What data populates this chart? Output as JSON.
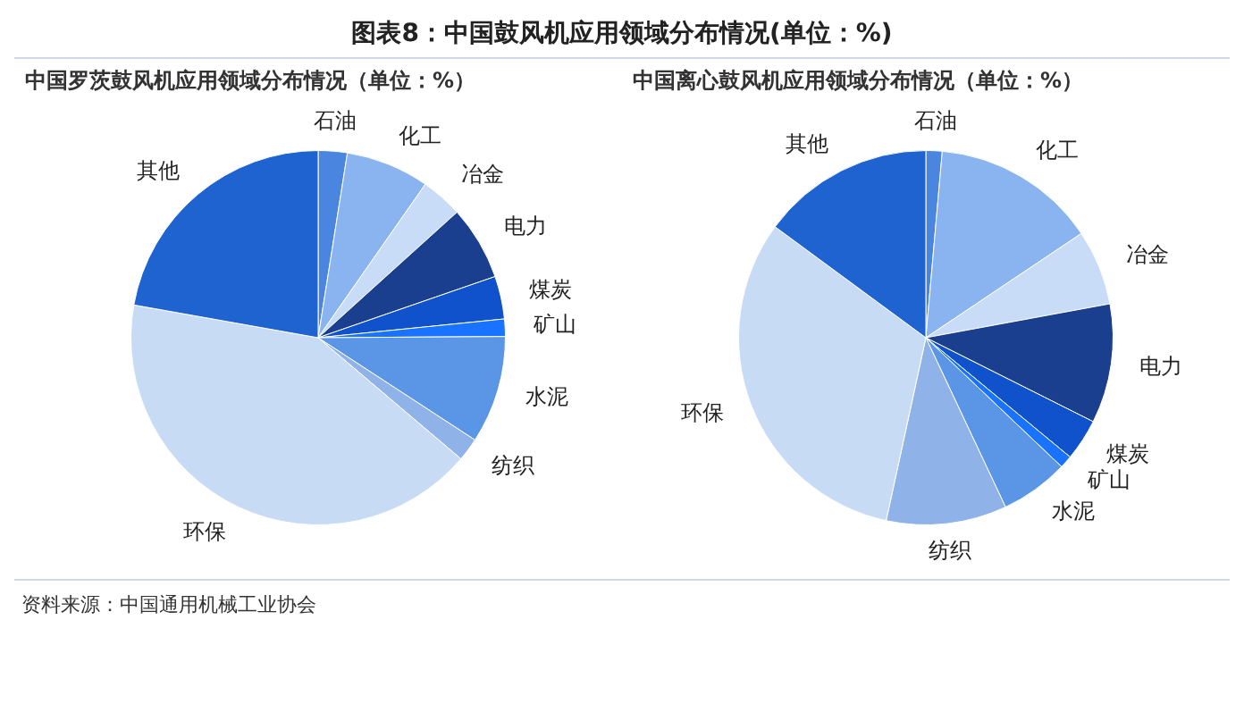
{
  "chart_data": [
    {
      "type": "other",
      "title": "图表8：中国鼓风机应用领域分布情况(单位：%)",
      "annotations": [
        "资料来源：中国通用机械工业协会"
      ]
    },
    {
      "type": "pie",
      "title": "中国罗茨鼓风机应用领域分布情况（单位：%）",
      "categories": [
        "石油",
        "化工",
        "冶金",
        "电力",
        "煤炭",
        "矿山",
        "水泥",
        "纺织",
        "环保",
        "其他"
      ],
      "values": [
        2.5,
        7.2,
        3.6,
        6.4,
        3.7,
        1.5,
        9.3,
        2.0,
        41.6,
        22.2
      ],
      "colors": [
        "#4a86e0",
        "#8ab4f0",
        "#c8dcf8",
        "#1a3f8f",
        "#0f52cc",
        "#1a73ff",
        "#5b96e6",
        "#8fb3e8",
        "#c7dbf5",
        "#1f63d0"
      ]
    },
    {
      "type": "pie",
      "title": "中国离心鼓风机应用领域分布情况（单位：%）",
      "categories": [
        "石油",
        "化工",
        "冶金",
        "电力",
        "煤炭",
        "矿山",
        "水泥",
        "纺织",
        "环保",
        "其他"
      ],
      "values": [
        1.4,
        14.2,
        6.5,
        10.3,
        3.6,
        1.1,
        5.9,
        10.4,
        31.7,
        14.9
      ],
      "colors": [
        "#4a86e0",
        "#8ab4f0",
        "#c8dcf8",
        "#1a3f8f",
        "#0f52cc",
        "#1a73ff",
        "#5b96e6",
        "#8fb3e8",
        "#c7dbf5",
        "#1f63d0"
      ]
    }
  ]
}
